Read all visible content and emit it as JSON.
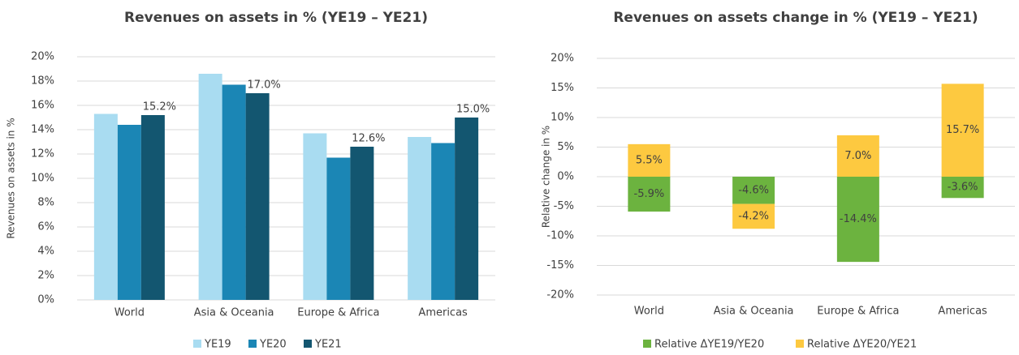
{
  "chart_data": [
    {
      "type": "bar",
      "title": "Revenues on assets in % (YE19 – YE21)",
      "y_label": "Revenues on assets in %",
      "categories": [
        "World",
        "Asia & Oceania",
        "Europe & Africa",
        "Americas"
      ],
      "series": [
        {
          "name": "YE19",
          "color": "#a9dcf1",
          "values": [
            15.3,
            18.6,
            13.7,
            13.4
          ]
        },
        {
          "name": "YE20",
          "color": "#1b86b5",
          "values": [
            14.4,
            17.7,
            11.7,
            12.9
          ]
        },
        {
          "name": "YE21",
          "color": "#135670",
          "values": [
            15.2,
            17.0,
            12.6,
            15.0
          ],
          "value_labels": [
            "15.2%",
            "17.0%",
            "12.6%",
            "15.0%"
          ]
        }
      ],
      "ylim": [
        0,
        20
      ],
      "yticks": [
        {
          "value": 0,
          "label": "0%"
        },
        {
          "value": 2,
          "label": "2%"
        },
        {
          "value": 4,
          "label": "4%"
        },
        {
          "value": 6,
          "label": "6%"
        },
        {
          "value": 8,
          "label": "8%"
        },
        {
          "value": 10,
          "label": "10%"
        },
        {
          "value": 12,
          "label": "12%"
        },
        {
          "value": 14,
          "label": "14%"
        },
        {
          "value": 16,
          "label": "16%"
        },
        {
          "value": 18,
          "label": "18%"
        },
        {
          "value": 20,
          "label": "20%"
        }
      ],
      "grid": true,
      "legend": "bottom"
    },
    {
      "type": "stacked_bar",
      "title": "Revenues on assets change in % (YE19 – YE21)",
      "y_label": "Relative change in %",
      "categories": [
        "World",
        "Asia & Oceania",
        "Europe & Africa",
        "Americas"
      ],
      "series": [
        {
          "name": "Relative ΔYE19/YE20",
          "color": "#6cb33f",
          "values": [
            -5.9,
            -4.6,
            -14.4,
            -3.6
          ],
          "value_labels": [
            "-5.9%",
            "-4.6%",
            "-14.4%",
            "-3.6%"
          ]
        },
        {
          "name": "Relative ΔYE20/YE21",
          "color": "#fdc940",
          "values": [
            5.5,
            -4.2,
            7.0,
            15.7
          ],
          "value_labels": [
            "5.5%",
            "-4.2%",
            "7.0%",
            "15.7%"
          ]
        }
      ],
      "ylim": [
        -20,
        20
      ],
      "yticks": [
        {
          "value": -20,
          "label": "-20%"
        },
        {
          "value": -15,
          "label": "-15%"
        },
        {
          "value": -10,
          "label": "-10%"
        },
        {
          "value": -5,
          "label": "-5%"
        },
        {
          "value": 0,
          "label": "0%"
        },
        {
          "value": 5,
          "label": "5%"
        },
        {
          "value": 10,
          "label": "10%"
        },
        {
          "value": 15,
          "label": "15%"
        },
        {
          "value": 20,
          "label": "20%"
        }
      ],
      "grid": true,
      "legend": "bottom"
    }
  ]
}
